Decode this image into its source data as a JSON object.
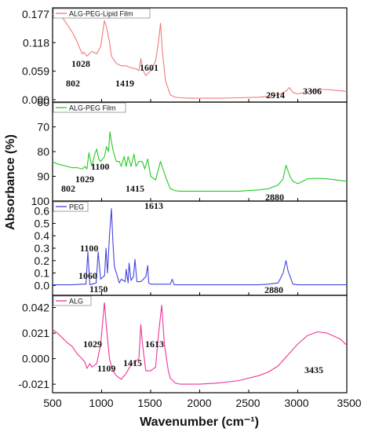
{
  "chart_data": {
    "type": "line",
    "xlabel": "Wavenumber (cm⁻¹)",
    "ylabel": "Absorbance (%)",
    "xlim": [
      500,
      3500
    ],
    "xticks": [
      "500",
      "1000",
      "1500",
      "2000",
      "2500",
      "3000",
      "3500"
    ],
    "grid": false,
    "legend": "top-left",
    "panels": [
      {
        "series": [
          {
            "name": "ALG-PEG-Lipid Film",
            "color": "#f07a7a",
            "x": [
              500,
              550,
              600,
              650,
              700,
              750,
              780,
              802,
              820,
              850,
              900,
              950,
              990,
              1028,
              1050,
              1080,
              1100,
              1150,
              1200,
              1250,
              1300,
              1350,
              1380,
              1400,
              1419,
              1450,
              1500,
              1550,
              1580,
              1601,
              1620,
              1650,
              1700,
              1750,
              1800,
              1900,
              2000,
              2200,
              2400,
              2600,
              2700,
              2800,
              2850,
              2880,
              2914,
              2950,
              3000,
              3100,
              3200,
              3306,
              3350,
              3400,
              3450,
              3500
            ],
            "y": [
              0.177,
              0.176,
              0.17,
              0.155,
              0.14,
              0.12,
              0.105,
              0.095,
              0.098,
              0.09,
              0.1,
              0.095,
              0.11,
              0.163,
              0.15,
              0.12,
              0.09,
              0.075,
              0.07,
              0.07,
              0.066,
              0.064,
              0.06,
              0.085,
              0.062,
              0.05,
              0.06,
              0.08,
              0.12,
              0.158,
              0.1,
              0.04,
              0.01,
              0.005,
              0.004,
              0.003,
              0.003,
              0.003,
              0.004,
              0.005,
              0.007,
              0.01,
              0.014,
              0.018,
              0.025,
              0.015,
              0.012,
              0.016,
              0.021,
              0.021,
              0.02,
              0.019,
              0.018,
              0.017
            ]
          }
        ],
        "ylim": [
          -0.005,
          0.19
        ],
        "yticks": [
          "0.000",
          "0.059",
          "0.118",
          "0.177"
        ],
        "y_inverted": false,
        "annotations": [
          "802",
          "1028",
          "1419",
          "1601",
          "2914",
          "3306"
        ]
      },
      {
        "series": [
          {
            "name": "ALG-PEG Film",
            "color": "#22cc22",
            "x": [
              500,
              550,
              600,
              650,
              700,
              750,
              802,
              830,
              850,
              870,
              900,
              930,
              950,
              970,
              990,
              1029,
              1050,
              1070,
              1085,
              1100,
              1120,
              1150,
              1180,
              1200,
              1230,
              1250,
              1270,
              1300,
              1330,
              1350,
              1380,
              1415,
              1440,
              1470,
              1500,
              1550,
              1600,
              1650,
              1700,
              1750,
              1800,
              2000,
              2200,
              2400,
              2600,
              2700,
              2800,
              2850,
              2880,
              2920,
              2950,
              3000,
              3100,
              3200,
              3300,
              3400,
              3500
            ],
            "y": [
              84,
              85,
              85.5,
              86,
              86.5,
              86.5,
              87,
              86,
              87,
              80.5,
              86,
              81,
              79,
              83,
              84,
              82,
              78,
              80,
              72,
              76,
              80,
              84,
              84,
              86,
              82,
              86,
              82,
              86,
              81,
              86,
              84,
              84,
              87,
              83,
              90,
              91.5,
              84,
              90,
              95,
              95.8,
              96,
              96,
              96,
              96,
              95.5,
              95,
              93.5,
              91,
              85.5,
              90,
              92,
              93,
              91,
              90.8,
              91,
              91.5,
              92
            ]
          }
        ],
        "ylim": [
          100,
          60
        ],
        "yticks": [
          "60",
          "70",
          "80",
          "90",
          "100"
        ],
        "y_inverted": true,
        "annotations": [
          "802",
          "1029",
          "1100",
          "1415",
          "1613",
          "2880"
        ]
      },
      {
        "series": [
          {
            "name": "PEG",
            "color": "#4444dd",
            "x": [
              500,
              600,
              700,
              800,
              840,
              860,
              880,
              900,
              945,
              965,
              990,
              1030,
              1045,
              1060,
              1080,
              1100,
              1115,
              1130,
              1150,
              1180,
              1200,
              1240,
              1250,
              1270,
              1280,
              1300,
              1325,
              1340,
              1360,
              1400,
              1450,
              1470,
              1480,
              1500,
              1600,
              1700,
              1720,
              1740,
              1800,
              2000,
              2200,
              2400,
              2600,
              2700,
              2800,
              2850,
              2880,
              2900,
              2950,
              3000,
              3200,
              3400,
              3500
            ],
            "y": [
              0.005,
              0.005,
              0.005,
              0.01,
              0.01,
              0.27,
              0.005,
              0.01,
              0.02,
              0.27,
              0.05,
              0.08,
              0.3,
              0.1,
              0.4,
              0.62,
              0.35,
              0.15,
              0.1,
              0.02,
              0.05,
              0.03,
              0.13,
              0.02,
              0.18,
              0.04,
              0.07,
              0.21,
              0.03,
              0.03,
              0.07,
              0.16,
              0.02,
              0.01,
              0.01,
              0.01,
              0.05,
              0.005,
              0.005,
              0.005,
              0.005,
              0.005,
              0.005,
              0.01,
              0.02,
              0.1,
              0.2,
              0.12,
              0.01,
              0.005,
              0.005,
              0.005,
              0.005
            ]
          }
        ],
        "ylim": [
          -0.08,
          0.68
        ],
        "yticks": [
          "0.0",
          "0.1",
          "0.2",
          "0.3",
          "0.4",
          "0.5",
          "0.6"
        ],
        "y_inverted": false,
        "annotations": [
          "1060",
          "1100",
          "1150",
          "2880"
        ]
      },
      {
        "series": [
          {
            "name": "ALG",
            "color": "#ee3399",
            "x": [
              500,
              550,
              600,
              650,
              700,
              750,
              800,
              830,
              850,
              880,
              900,
              950,
              990,
              1029,
              1050,
              1080,
              1109,
              1150,
              1200,
              1250,
              1300,
              1350,
              1380,
              1400,
              1415,
              1450,
              1500,
              1550,
              1580,
              1613,
              1640,
              1680,
              1700,
              1750,
              1800,
              1900,
              2000,
              2200,
              2400,
              2600,
              2700,
              2800,
              2900,
              3000,
              3100,
              3200,
              3300,
              3435,
              3500
            ],
            "y": [
              0.024,
              0.021,
              0.017,
              0.013,
              0.01,
              0.004,
              0.0,
              -0.003,
              -0.008,
              -0.004,
              -0.007,
              -0.004,
              0.012,
              0.046,
              0.025,
              0.0,
              -0.009,
              -0.014,
              -0.017,
              -0.012,
              -0.005,
              -0.002,
              0.0,
              0.028,
              0.013,
              -0.01,
              -0.01,
              -0.007,
              0.02,
              0.044,
              0.012,
              -0.01,
              -0.016,
              -0.02,
              -0.021,
              -0.021,
              -0.021,
              -0.02,
              -0.018,
              -0.014,
              -0.011,
              -0.006,
              0.003,
              0.012,
              0.019,
              0.022,
              0.021,
              0.016,
              0.011
            ]
          }
        ],
        "ylim": [
          -0.028,
          0.052
        ],
        "yticks": [
          "-0.021",
          "0.000",
          "0.021",
          "0.042"
        ],
        "y_inverted": false,
        "annotations": [
          "1029",
          "1109",
          "1415",
          "1613",
          "3435"
        ]
      }
    ]
  }
}
